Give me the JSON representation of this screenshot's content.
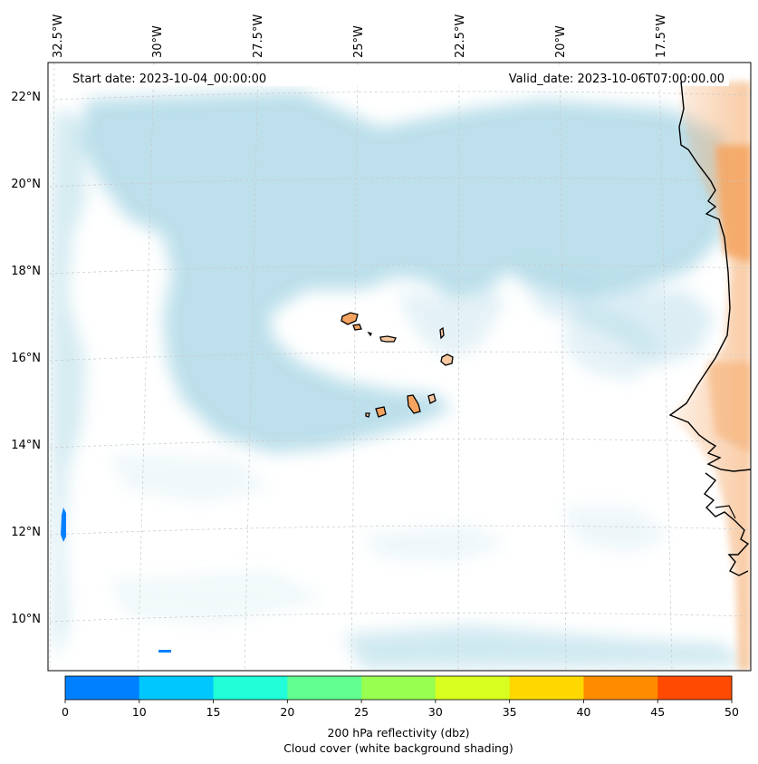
{
  "map": {
    "start_date_text": "Start date: 2023-10-04_00:00:00",
    "valid_date_text": "Valid_date: 2023-10-06T07:00:00.00",
    "lon_labels": [
      "32.5°W",
      "30°W",
      "27.5°W",
      "25°W",
      "22.5°W",
      "20°W",
      "17.5°W"
    ],
    "lat_labels": [
      "22°N",
      "20°N",
      "18°N",
      "16°N",
      "14°N",
      "12°N",
      "10°N"
    ],
    "gridlines": true,
    "cloud_color": "#add8e6",
    "land_fill_color": "#f4a460",
    "coastline_color": "#000000"
  },
  "colorbar": {
    "ticks": [
      "0",
      "10",
      "15",
      "20",
      "25",
      "30",
      "35",
      "40",
      "45",
      "50"
    ],
    "colors": [
      "#0080ff",
      "#00c8ff",
      "#20ffd8",
      "#60ff90",
      "#98ff50",
      "#d8ff20",
      "#ffd800",
      "#ff8c00",
      "#ff4a00"
    ],
    "label_line1": "200 hPa reflectivity (dbz)",
    "label_line2": "Cloud cover (white background shading)"
  }
}
